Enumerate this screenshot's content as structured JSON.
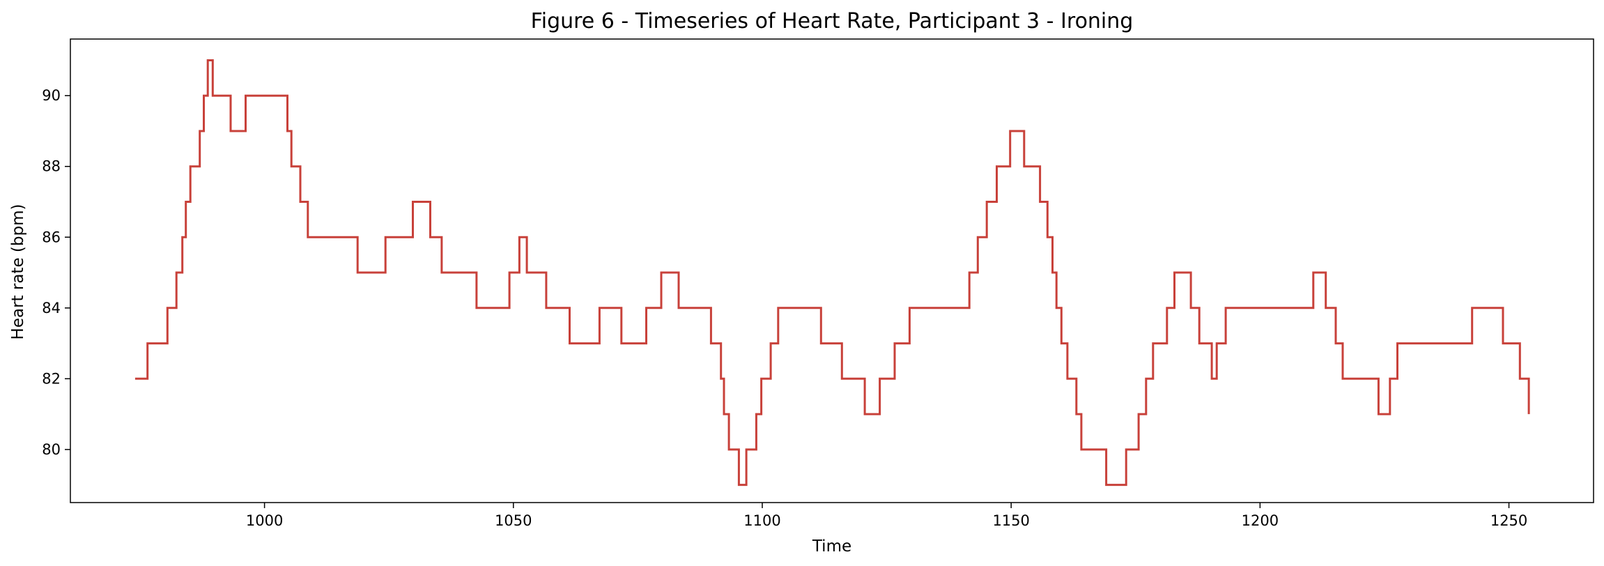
{
  "chart_data": {
    "type": "line",
    "title": "Figure 6 - Timeseries of Heart Rate, Participant 3 - Ironing",
    "xlabel": "Time",
    "ylabel": "Heart rate (bpm)",
    "xlim": [
      961,
      1267
    ],
    "ylim": [
      78.5,
      91.6
    ],
    "grid": false,
    "legend": "none",
    "step": true,
    "x_ticks": [
      1000,
      1050,
      1100,
      1150,
      1200,
      1250
    ],
    "y_ticks": [
      80,
      82,
      84,
      86,
      88,
      90
    ],
    "line_color": "#c8413a",
    "series": [
      {
        "x": [
          974,
          976.5,
          980.5,
          982.3,
          983.5,
          984.2,
          985.1,
          987,
          987.8,
          988.6,
          989.6,
          993.2,
          996.2,
          998.2,
          1004.6,
          1005.4,
          1007.2,
          1008.7,
          1018.7,
          1024.3,
          1029.8,
          1033.3,
          1035.6,
          1042.6,
          1049.2,
          1051.2,
          1052.7,
          1056.6,
          1061.3,
          1067.3,
          1071.7,
          1076.7,
          1079.7,
          1083.2,
          1089.7,
          1091.7,
          1092.3,
          1093.3,
          1095.3,
          1096.8,
          1098.8,
          1099.8,
          1101.7,
          1103.2,
          1111.8,
          1116,
          1120.6,
          1123.6,
          1126.6,
          1129.6,
          1141.6,
          1143.3,
          1145.1,
          1147.1,
          1149.8,
          1152.6,
          1155.8,
          1157.3,
          1158.3,
          1159.1,
          1160.1,
          1161.3,
          1163.1,
          1164.1,
          1169.1,
          1173.1,
          1175.6,
          1177.1,
          1178.5,
          1181.3,
          1182.8,
          1186.1,
          1187.8,
          1190.3,
          1191.3,
          1193.1,
          1210.7,
          1213.2,
          1215.2,
          1216.6,
          1223.8,
          1226.1,
          1227.6,
          1242.6,
          1248.8,
          1252.2,
          1254
        ],
        "y": [
          82,
          83,
          84,
          85,
          86,
          87,
          88,
          89,
          90,
          91,
          90,
          89,
          90,
          90,
          89,
          88,
          87,
          86,
          85,
          86,
          87,
          86,
          85,
          84,
          85,
          86,
          85,
          84,
          83,
          84,
          83,
          84,
          85,
          84,
          83,
          82,
          81,
          80,
          79,
          80,
          81,
          82,
          83,
          84,
          83,
          82,
          81,
          82,
          83,
          84,
          85,
          86,
          87,
          88,
          89,
          88,
          87,
          86,
          85,
          84,
          83,
          82,
          81,
          80,
          79,
          80,
          81,
          82,
          83,
          84,
          85,
          84,
          83,
          82,
          83,
          84,
          85,
          84,
          83,
          82,
          81,
          82,
          83,
          84,
          83,
          82,
          81
        ]
      }
    ]
  }
}
